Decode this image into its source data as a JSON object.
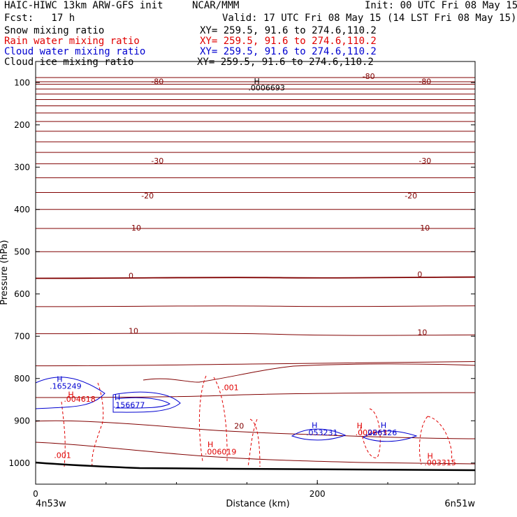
{
  "header": {
    "model_title": "HAIC-HIWC 13km ARW-GFS init",
    "org": "NCAR/MMM",
    "init": "Init: 00 UTC Fri 08 May 15",
    "fcst": "Fcst:   17 h",
    "valid": "Valid: 17 UTC Fri 08 May 15 (14 LST Fri 08 May 15)"
  },
  "fields": [
    {
      "label": "Snow mixing ratio",
      "xy": "XY= 259.5, 91.6 to 274.6,110.2",
      "color": "#000000"
    },
    {
      "label": "Rain water mixing ratio",
      "xy": "XY= 259.5, 91.6 to 274.6,110.2",
      "color": "#e00000"
    },
    {
      "label": "Cloud water mixing ratio",
      "xy": "XY= 259.5, 91.6 to 274.6,110.2",
      "color": "#0000d0"
    },
    {
      "label": "Cloud ice mixing ratio",
      "xy": "XY= 259.5, 91.6 to 274.6,110.2",
      "color": "#000000"
    }
  ],
  "colors": {
    "temperature": "#800000",
    "rain": "#e00000",
    "cloud_water": "#0000d0",
    "terrain": "#000000"
  },
  "chart_data": {
    "type": "line",
    "title": "",
    "xlabel": "Distance (km)",
    "ylabel": "Pressure (hPa)",
    "xlim": [
      0,
      312
    ],
    "ylim": [
      1050,
      50
    ],
    "x_ticks": [
      "0",
      "200"
    ],
    "y_ticks": [
      "100",
      "200",
      "300",
      "400",
      "500",
      "600",
      "700",
      "800",
      "900",
      "1000"
    ],
    "endpoint_labels": [
      "4n53w",
      "6n51w"
    ],
    "temperature_contour_labels": [
      {
        "text": "-80",
        "x": 82,
        "p": 104
      },
      {
        "text": "-80",
        "x": 232,
        "p": 91
      },
      {
        "text": "-80",
        "x": 272,
        "p": 104
      },
      {
        "text": "-30",
        "x": 82,
        "p": 291
      },
      {
        "text": "-30",
        "x": 272,
        "p": 291
      },
      {
        "text": "-20",
        "x": 75,
        "p": 374
      },
      {
        "text": "-20",
        "x": 262,
        "p": 374
      },
      {
        "text": "-10",
        "x": 66,
        "p": 450
      },
      {
        "text": "-10",
        "x": 271,
        "p": 450
      },
      {
        "text": "0",
        "x": 66,
        "p": 563
      },
      {
        "text": "0",
        "x": 271,
        "p": 560
      },
      {
        "text": "10",
        "x": 66,
        "p": 694
      },
      {
        "text": "10",
        "x": 271,
        "p": 697
      },
      {
        "text": "20",
        "x": 141,
        "p": 919
      }
    ],
    "rain_labels": [
      {
        "text": ".004618",
        "x": 20,
        "p": 855
      },
      {
        "text": ".001",
        "x": 13,
        "p": 988
      },
      {
        "text": ".001",
        "x": 132,
        "p": 828
      },
      {
        "text": ".006019",
        "x": 120,
        "p": 980
      },
      {
        "text": ".002663",
        "x": 227,
        "p": 934
      },
      {
        "text": ".003315",
        "x": 276,
        "p": 1005
      }
    ],
    "rain_maxima_labels": [
      {
        "text": "H",
        "x": 23,
        "p": 844
      },
      {
        "text": "H",
        "x": 122,
        "p": 962
      },
      {
        "text": "H",
        "x": 228,
        "p": 918
      },
      {
        "text": "H",
        "x": 278,
        "p": 990
      }
    ],
    "cloud_water_labels": [
      {
        "text": ".165249",
        "x": 10,
        "p": 824
      },
      {
        "text": ".156677",
        "x": 55,
        "p": 869
      },
      {
        "text": ".053231",
        "x": 192,
        "p": 934
      },
      {
        "text": ".026126",
        "x": 234,
        "p": 934
      }
    ],
    "cloud_water_maxima_labels": [
      {
        "text": "H",
        "x": 15,
        "p": 808
      },
      {
        "text": "H",
        "x": 56,
        "p": 851
      },
      {
        "text": "H",
        "x": 196,
        "p": 917
      },
      {
        "text": "H",
        "x": 245,
        "p": 917
      }
    ],
    "snow_labels": [
      {
        "text": ".0006693",
        "x": 151,
        "p": 119
      }
    ],
    "snow_maxima_labels": [
      {
        "text": "H",
        "x": 155,
        "p": 103
      }
    ]
  }
}
